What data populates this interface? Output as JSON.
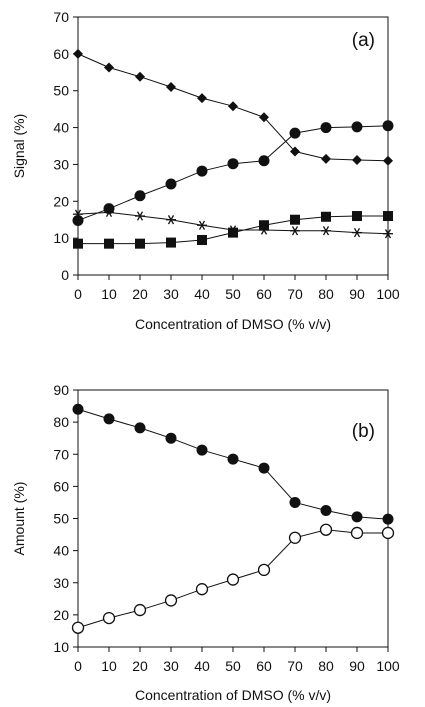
{
  "chart_data": [
    {
      "panel_label": "(a)",
      "type": "line",
      "xlabel": "Concentration of DMSO (% v/v)",
      "ylabel": "Signal (%)",
      "xlim": [
        0,
        100
      ],
      "ylim": [
        0,
        70
      ],
      "x_ticks": [
        "0",
        "10",
        "20",
        "30",
        "40",
        "50",
        "60",
        "70",
        "80",
        "90",
        "100"
      ],
      "y_ticks": [
        "0",
        "10",
        "20",
        "30",
        "40",
        "50",
        "60",
        "70"
      ],
      "grid": false,
      "x": [
        0,
        10,
        20,
        30,
        40,
        50,
        60,
        70,
        80,
        90,
        100
      ],
      "series": [
        {
          "marker": "diamond",
          "values": [
            60,
            56.3,
            53.8,
            51,
            48,
            45.8,
            42.8,
            33.5,
            31.5,
            31.2,
            31
          ]
        },
        {
          "marker": "circle-filled",
          "values": [
            14.8,
            18,
            21.5,
            24.7,
            28.2,
            30.2,
            31,
            38.5,
            40,
            40.2,
            40.5
          ]
        },
        {
          "marker": "asterisk",
          "values": [
            16.5,
            17,
            16,
            15,
            13.5,
            12.2,
            12.2,
            12,
            12,
            11.5,
            11.2
          ]
        },
        {
          "marker": "square",
          "values": [
            8.5,
            8.5,
            8.5,
            8.8,
            9.5,
            11.5,
            13.5,
            15,
            15.8,
            16,
            16
          ]
        }
      ]
    },
    {
      "panel_label": "(b)",
      "type": "line",
      "xlabel": "Concentration of DMSO (% v/v)",
      "ylabel": "Amount (%)",
      "xlim": [
        0,
        100
      ],
      "ylim": [
        10,
        90
      ],
      "x_ticks": [
        "0",
        "10",
        "20",
        "30",
        "40",
        "50",
        "60",
        "70",
        "80",
        "90",
        "100"
      ],
      "y_ticks": [
        "10",
        "20",
        "30",
        "40",
        "50",
        "60",
        "70",
        "80",
        "90"
      ],
      "grid": false,
      "x": [
        0,
        10,
        20,
        30,
        40,
        50,
        60,
        70,
        80,
        90,
        100
      ],
      "series": [
        {
          "marker": "circle-filled",
          "values": [
            84,
            81,
            78.2,
            75,
            71.3,
            68.5,
            65.7,
            55,
            52.5,
            50.5,
            49.8
          ]
        },
        {
          "marker": "circle-open",
          "values": [
            16,
            19,
            21.5,
            24.5,
            28,
            31,
            34,
            44,
            46.5,
            45.5,
            45.5
          ]
        }
      ]
    }
  ]
}
